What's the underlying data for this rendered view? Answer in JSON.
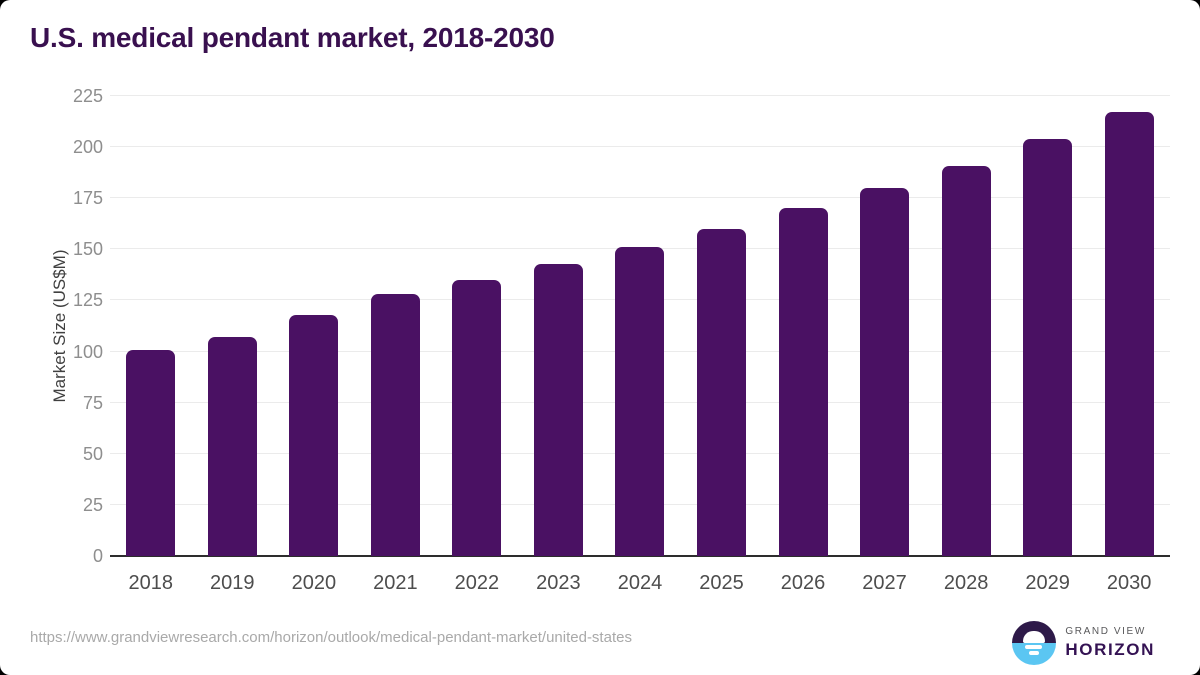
{
  "chart_data": {
    "type": "bar",
    "title": "U.S. medical pendant market, 2018-2030",
    "categories": [
      "2018",
      "2019",
      "2020",
      "2021",
      "2022",
      "2023",
      "2024",
      "2025",
      "2026",
      "2027",
      "2028",
      "2029",
      "2030"
    ],
    "values": [
      101,
      107,
      118,
      128,
      135,
      143,
      151,
      160,
      170,
      180,
      191,
      204,
      217
    ],
    "xlabel": "",
    "ylabel": "Market Size (US$M)",
    "ylim": [
      0,
      225
    ],
    "ytick_step": 25,
    "grid": "horizontal",
    "legend": "none",
    "bar_color": "#4a1163"
  },
  "footer": {
    "source_url": "https://www.grandviewresearch.com/horizon/outlook/medical-pendant-market/united-states",
    "logo": {
      "top": "GRAND VIEW",
      "bottom": "HORIZON"
    }
  },
  "colors": {
    "title": "#39104f",
    "bar": "#4a1163",
    "axis": "#2d2d2d",
    "gridline": "#ebebeb",
    "tick_label": "#8e8e8e",
    "x_label": "#4d4d4d",
    "ylabel_color": "#404040",
    "url": "#a9a9a9",
    "logo_dark": "#2e1a49",
    "logo_blue": "#5bc6f2",
    "logo_text": "#341253",
    "logo_subtext": "#58585a"
  }
}
